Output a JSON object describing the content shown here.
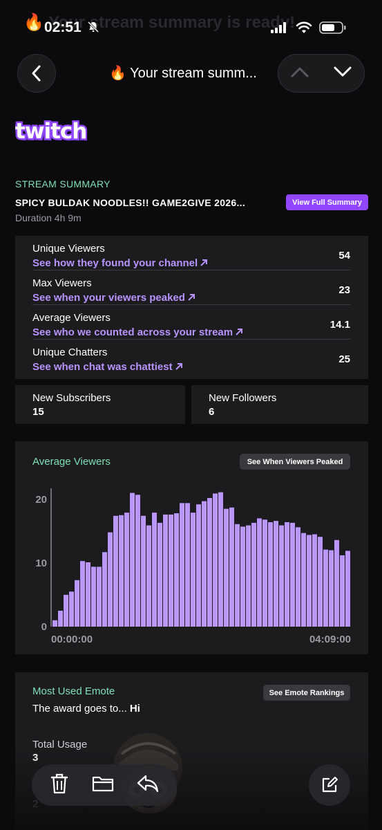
{
  "status_bar": {
    "time": "02:51",
    "ghost_text": "🔥 Your stream summary is ready!"
  },
  "header": {
    "title": "🔥 Your stream summ..."
  },
  "summary": {
    "section_label": "STREAM SUMMARY",
    "stream_title": "SPICY BULDAK NOODLES!! GAME2GIVE 2026...",
    "duration": "Duration 4h 9m",
    "view_full_label": "View Full Summary"
  },
  "metrics": [
    {
      "name": "Unique Viewers",
      "link": "See how they found your channel",
      "value": "54"
    },
    {
      "name": "Max Viewers",
      "link": "See when your viewers peaked",
      "value": "23"
    },
    {
      "name": "Average Viewers",
      "link": "See who we counted across your stream",
      "value": "14.1"
    },
    {
      "name": "Unique Chatters",
      "link": "See when chat was chattiest",
      "value": "25"
    }
  ],
  "subscribers": {
    "label": "New Subscribers",
    "value": "15"
  },
  "followers": {
    "label": "New Followers",
    "value": "6"
  },
  "chart_section": {
    "title": "Average Viewers",
    "button_label": "See When Viewers Peaked"
  },
  "chart_data": {
    "type": "bar",
    "title": "Average Viewers",
    "xlabel": "",
    "ylabel": "",
    "x_tick_labels": [
      "00:00:00",
      "04:09:00"
    ],
    "y_ticks": [
      0,
      10,
      20
    ],
    "ylim": [
      0,
      21.5
    ],
    "values": [
      1,
      2.5,
      5,
      5.5,
      7.3,
      10.3,
      10.1,
      9.4,
      9.4,
      11.7,
      14.8,
      17.4,
      17.5,
      17.9,
      21,
      20.7,
      17.4,
      15.9,
      17.9,
      16.3,
      17.6,
      17.6,
      17.8,
      19.4,
      19.4,
      17.9,
      19.2,
      19.7,
      20.2,
      20.9,
      21.1,
      18.5,
      18.7,
      16.1,
      15.7,
      15.9,
      16.3,
      17,
      16.8,
      16.4,
      16.6,
      15.9,
      16.4,
      16.3,
      15.6,
      14.7,
      14.4,
      14.5,
      14.1,
      12.1,
      12,
      13.6,
      11.2,
      11.9
    ],
    "grid": false,
    "legend": "none",
    "bar_color": "#b997ff"
  },
  "emote": {
    "title": "Most Used Emote",
    "button_label": "See Emote Rankings",
    "text_prefix": "The award goes to... ",
    "emote_name": "Hi",
    "usage_label": "Total Usage",
    "usage_value": "3",
    "faded_value": "2"
  },
  "colors": {
    "accent_purple": "#9147ff",
    "link_purple": "#b893ff",
    "heading_green": "#7fe0b4",
    "card_bg": "#1c1c1f"
  }
}
